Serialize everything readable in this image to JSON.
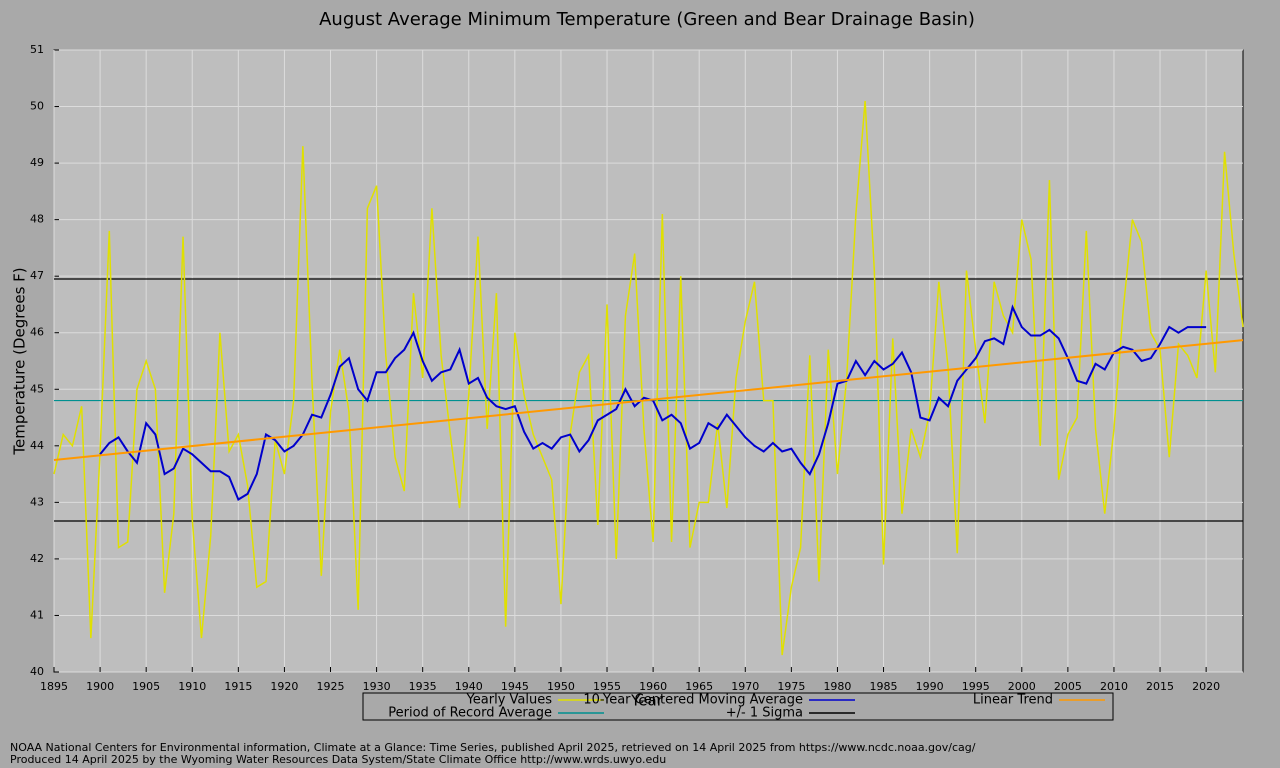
{
  "chart_data": {
    "type": "line",
    "title": "August Average Minimum Temperature (Green and Bear Drainage Basin)",
    "xlabel": "Year",
    "ylabel": "Temperature (Degrees F)",
    "x": [
      1895,
      1896,
      1897,
      1898,
      1899,
      1900,
      1901,
      1902,
      1903,
      1904,
      1905,
      1906,
      1907,
      1908,
      1909,
      1910,
      1911,
      1912,
      1913,
      1914,
      1915,
      1916,
      1917,
      1918,
      1919,
      1920,
      1921,
      1922,
      1923,
      1924,
      1925,
      1926,
      1927,
      1928,
      1929,
      1930,
      1931,
      1932,
      1933,
      1934,
      1935,
      1936,
      1937,
      1938,
      1939,
      1940,
      1941,
      1942,
      1943,
      1944,
      1945,
      1946,
      1947,
      1948,
      1949,
      1950,
      1951,
      1952,
      1953,
      1954,
      1955,
      1956,
      1957,
      1958,
      1959,
      1960,
      1961,
      1962,
      1963,
      1964,
      1965,
      1966,
      1967,
      1968,
      1969,
      1970,
      1971,
      1972,
      1973,
      1974,
      1975,
      1976,
      1977,
      1978,
      1979,
      1980,
      1981,
      1982,
      1983,
      1984,
      1985,
      1986,
      1987,
      1988,
      1989,
      1990,
      1991,
      1992,
      1993,
      1994,
      1995,
      1996,
      1997,
      1998,
      1999,
      2000,
      2001,
      2002,
      2003,
      2004,
      2005,
      2006,
      2007,
      2008,
      2009,
      2010,
      2011,
      2012,
      2013,
      2014,
      2015,
      2016,
      2017,
      2018,
      2019,
      2020,
      2021,
      2022,
      2023,
      2024
    ],
    "series": [
      {
        "name": "Yearly Values",
        "color": "#e0e000",
        "values": [
          43.5,
          44.2,
          44.0,
          44.7,
          40.6,
          43.9,
          47.8,
          42.2,
          42.3,
          45.0,
          45.5,
          45.0,
          41.4,
          42.8,
          47.7,
          42.7,
          40.6,
          42.4,
          46.0,
          43.9,
          44.2,
          43.3,
          41.5,
          41.6,
          44.1,
          43.5,
          44.8,
          49.3,
          45.1,
          41.7,
          44.6,
          45.7,
          44.6,
          41.1,
          48.2,
          48.6,
          45.6,
          43.8,
          43.2,
          46.7,
          45.2,
          48.2,
          45.6,
          44.2,
          42.9,
          44.9,
          47.7,
          44.3,
          46.7,
          40.8,
          46.0,
          44.9,
          44.2,
          43.8,
          43.4,
          41.2,
          44.2,
          45.3,
          45.6,
          42.6,
          46.5,
          42.0,
          46.3,
          47.4,
          44.3,
          42.3,
          48.1,
          42.3,
          47.0,
          42.2,
          43.0,
          43.0,
          44.4,
          42.9,
          45.2,
          46.2,
          46.9,
          44.8,
          44.8,
          40.3,
          41.5,
          42.2,
          45.6,
          41.6,
          45.7,
          43.5,
          45.2,
          48.1,
          50.1,
          47.1,
          41.9,
          45.9,
          42.8,
          44.3,
          43.8,
          44.6,
          46.9,
          45.4,
          42.1,
          47.1,
          45.7,
          44.4,
          46.9,
          46.3,
          46.0,
          48.0,
          47.3,
          44.0,
          48.7,
          43.4,
          44.2,
          44.5,
          47.8,
          44.3,
          42.8,
          44.3,
          46.4,
          48.0,
          47.6,
          46.0,
          45.7,
          43.8,
          45.8,
          45.6,
          45.2,
          47.1,
          45.3,
          49.2,
          47.4,
          46.1
        ]
      },
      {
        "name": "10-Year Centered Moving Average",
        "color": "#0000cc",
        "values": [
          null,
          null,
          null,
          null,
          null,
          43.85,
          44.05,
          44.15,
          43.9,
          43.7,
          44.4,
          44.2,
          43.5,
          43.6,
          43.95,
          43.85,
          43.7,
          43.55,
          43.55,
          43.45,
          43.05,
          43.15,
          43.5,
          44.2,
          44.1,
          43.9,
          44.0,
          44.2,
          44.55,
          44.5,
          44.9,
          45.4,
          45.55,
          45.0,
          44.8,
          45.3,
          45.3,
          45.55,
          45.7,
          46.0,
          45.5,
          45.15,
          45.3,
          45.35,
          45.7,
          45.1,
          45.2,
          44.85,
          44.7,
          44.65,
          44.7,
          44.25,
          43.95,
          44.05,
          43.95,
          44.15,
          44.2,
          43.9,
          44.1,
          44.45,
          44.55,
          44.65,
          45.0,
          44.7,
          44.85,
          44.8,
          44.45,
          44.55,
          44.4,
          43.95,
          44.05,
          44.4,
          44.3,
          44.55,
          44.35,
          44.15,
          44.0,
          43.9,
          44.05,
          43.9,
          43.95,
          43.7,
          43.5,
          43.85,
          44.4,
          45.1,
          45.15,
          45.5,
          45.25,
          45.5,
          45.35,
          45.45,
          45.65,
          45.3,
          44.5,
          44.45,
          44.85,
          44.7,
          45.15,
          45.35,
          45.55,
          45.85,
          45.9,
          45.8,
          46.45,
          46.1,
          45.95,
          45.95,
          46.05,
          45.9,
          45.55,
          45.15,
          45.1,
          45.45,
          45.35,
          45.65,
          45.75,
          45.7,
          45.5,
          45.55,
          45.8,
          46.1,
          46.0,
          46.1,
          46.1,
          46.1,
          null,
          null,
          null,
          null
        ]
      },
      {
        "name": "Linear Trend",
        "color": "#ff9900",
        "x": [
          1895,
          2024
        ],
        "values": [
          43.75,
          45.87
        ]
      }
    ],
    "average": {
      "name": "Period of Record Average",
      "color": "#009090",
      "value": 44.8
    },
    "sigma": {
      "name": "+/- 1 Sigma",
      "color": "#000000",
      "values": [
        42.67,
        46.95
      ]
    },
    "xlim": [
      1895,
      2024
    ],
    "ylim": [
      40,
      51
    ],
    "xticks": [
      1895,
      1900,
      1905,
      1910,
      1915,
      1920,
      1925,
      1930,
      1935,
      1940,
      1945,
      1950,
      1955,
      1960,
      1965,
      1970,
      1975,
      1980,
      1985,
      1990,
      1995,
      2000,
      2005,
      2010,
      2015,
      2020
    ],
    "yticks": [
      40,
      41,
      42,
      43,
      44,
      45,
      46,
      47,
      48,
      49,
      50,
      51
    ],
    "grid": true,
    "footer": [
      "NOAA National Centers for Environmental information, Climate at a Glance: Time Series, published April 2025, retrieved on 14 April 2025 from https://www.ncdc.noaa.gov/cag/",
      "Produced 14 April 2025 by the Wyoming Water Resources Data System/State Climate Office http://www.wrds.uwyo.edu"
    ]
  }
}
